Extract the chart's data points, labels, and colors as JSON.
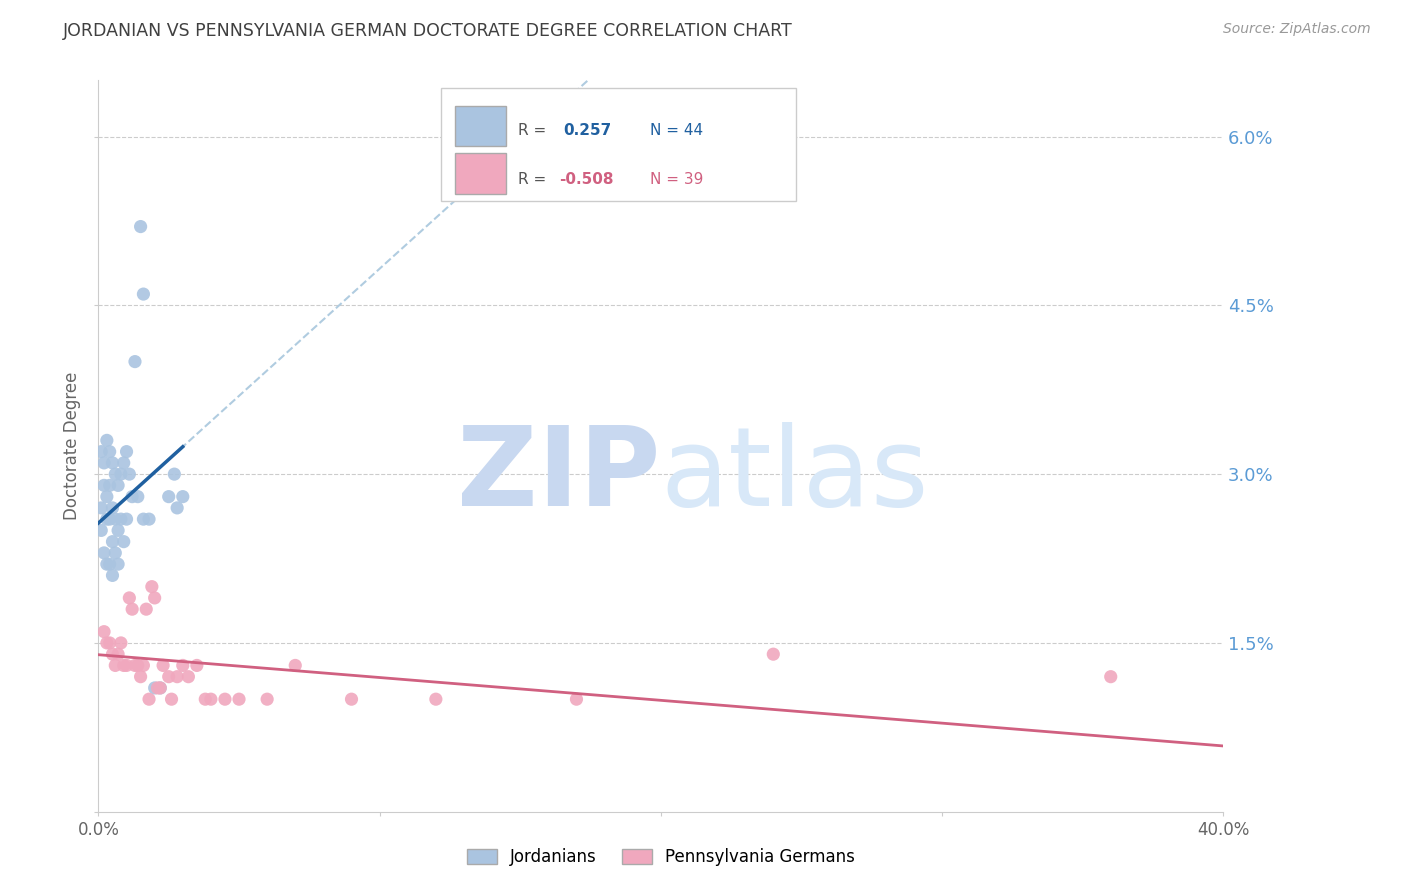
{
  "title": "JORDANIAN VS PENNSYLVANIA GERMAN DOCTORATE DEGREE CORRELATION CHART",
  "source": "Source: ZipAtlas.com",
  "ylabel": "Doctorate Degree",
  "xlim": [
    0.0,
    0.4
  ],
  "ylim": [
    0.0,
    0.065
  ],
  "yticks": [
    0.0,
    0.015,
    0.03,
    0.045,
    0.06
  ],
  "ytick_labels": [
    "",
    "1.5%",
    "3.0%",
    "4.5%",
    "6.0%"
  ],
  "blue_r": 0.257,
  "blue_n": 44,
  "pink_r": -0.508,
  "pink_n": 39,
  "blue_scatter_color": "#aac4e0",
  "blue_line_color": "#2060a0",
  "blue_dash_color": "#b0cce0",
  "pink_scatter_color": "#f0a8be",
  "pink_line_color": "#d06080",
  "background_color": "#ffffff",
  "grid_color": "#cccccc",
  "title_color": "#404040",
  "right_axis_color": "#5b9bd5",
  "watermark_zip_color": "#c8d8f0",
  "watermark_atlas_color": "#d8e8f8",
  "jord_x": [
    0.001,
    0.001,
    0.001,
    0.002,
    0.002,
    0.002,
    0.003,
    0.003,
    0.003,
    0.003,
    0.004,
    0.004,
    0.004,
    0.004,
    0.005,
    0.005,
    0.005,
    0.005,
    0.006,
    0.006,
    0.006,
    0.007,
    0.007,
    0.007,
    0.008,
    0.008,
    0.009,
    0.009,
    0.01,
    0.01,
    0.011,
    0.012,
    0.013,
    0.014,
    0.015,
    0.016,
    0.016,
    0.018,
    0.02,
    0.022,
    0.025,
    0.027,
    0.028,
    0.03
  ],
  "jord_y": [
    0.027,
    0.032,
    0.025,
    0.031,
    0.029,
    0.023,
    0.033,
    0.028,
    0.026,
    0.022,
    0.032,
    0.029,
    0.026,
    0.022,
    0.031,
    0.027,
    0.024,
    0.021,
    0.03,
    0.026,
    0.023,
    0.029,
    0.025,
    0.022,
    0.03,
    0.026,
    0.031,
    0.024,
    0.032,
    0.026,
    0.03,
    0.028,
    0.04,
    0.028,
    0.052,
    0.046,
    0.026,
    0.026,
    0.011,
    0.011,
    0.028,
    0.03,
    0.027,
    0.028
  ],
  "pa_x": [
    0.002,
    0.003,
    0.004,
    0.005,
    0.006,
    0.007,
    0.008,
    0.009,
    0.01,
    0.011,
    0.012,
    0.013,
    0.014,
    0.015,
    0.016,
    0.017,
    0.018,
    0.019,
    0.02,
    0.021,
    0.022,
    0.023,
    0.025,
    0.026,
    0.028,
    0.03,
    0.032,
    0.035,
    0.038,
    0.04,
    0.045,
    0.05,
    0.06,
    0.07,
    0.09,
    0.12,
    0.17,
    0.24,
    0.36
  ],
  "pa_y": [
    0.016,
    0.015,
    0.015,
    0.014,
    0.013,
    0.014,
    0.015,
    0.013,
    0.013,
    0.019,
    0.018,
    0.013,
    0.013,
    0.012,
    0.013,
    0.018,
    0.01,
    0.02,
    0.019,
    0.011,
    0.011,
    0.013,
    0.012,
    0.01,
    0.012,
    0.013,
    0.012,
    0.013,
    0.01,
    0.01,
    0.01,
    0.01,
    0.01,
    0.013,
    0.01,
    0.01,
    0.01,
    0.014,
    0.012
  ]
}
